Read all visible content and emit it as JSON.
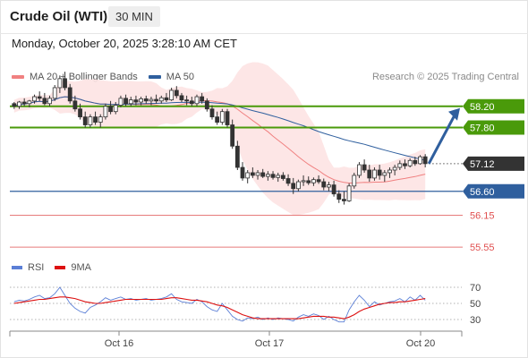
{
  "header": {
    "title": "Crude Oil (WTI)",
    "timeframe": "30 MIN"
  },
  "timestamp": "Monday, October 20, 2025 3:28:10 AM CET",
  "legend": {
    "bollinger": {
      "label": "MA 20 + Bollinger Bands",
      "color": "#f08080"
    },
    "ma50": {
      "label": "MA 50",
      "color": "#2f5f9e"
    }
  },
  "research_label": "Research © 2025 Trading Central",
  "rsi_legend": {
    "rsi": {
      "label": "RSI",
      "color": "#5b7fd6"
    },
    "ma9": {
      "label": "9MA",
      "color": "#dd1111"
    }
  },
  "chart_data": [
    {
      "type": "candlestick",
      "ylim": [
        55.4,
        58.6
      ],
      "xticks": [
        "Oct 16",
        "Oct 17",
        "Oct 20"
      ],
      "levels": [
        {
          "label": "58.20",
          "value": 58.2,
          "kind": "resistance",
          "color": "#4a9a0a"
        },
        {
          "label": "57.80",
          "value": 57.8,
          "kind": "resistance",
          "color": "#4a9a0a"
        },
        {
          "label": "57.12",
          "value": 57.12,
          "kind": "last",
          "color": "#333333"
        },
        {
          "label": "56.60",
          "value": 56.6,
          "kind": "pivot",
          "color": "#2f5f9e"
        },
        {
          "label": "56.15",
          "value": 56.15,
          "kind": "support",
          "color": "#e05050"
        },
        {
          "label": "55.55",
          "value": 55.55,
          "kind": "support",
          "color": "#e05050"
        }
      ],
      "candles": [
        [
          58.25,
          58.28,
          58.15,
          58.2
        ],
        [
          58.2,
          58.3,
          58.15,
          58.28
        ],
        [
          58.28,
          58.35,
          58.2,
          58.25
        ],
        [
          58.25,
          58.32,
          58.18,
          58.3
        ],
        [
          58.3,
          58.42,
          58.25,
          58.38
        ],
        [
          58.38,
          58.48,
          58.3,
          58.35
        ],
        [
          58.35,
          58.45,
          58.22,
          58.25
        ],
        [
          58.25,
          58.4,
          58.2,
          58.35
        ],
        [
          58.35,
          58.6,
          58.3,
          58.55
        ],
        [
          58.55,
          58.78,
          58.45,
          58.72
        ],
        [
          58.72,
          58.85,
          58.5,
          58.55
        ],
        [
          58.55,
          58.62,
          58.25,
          58.3
        ],
        [
          58.3,
          58.4,
          58.1,
          58.15
        ],
        [
          58.15,
          58.25,
          57.95,
          58.0
        ],
        [
          58.0,
          58.1,
          57.8,
          57.85
        ],
        [
          57.85,
          58.05,
          57.8,
          58.0
        ],
        [
          58.0,
          58.1,
          57.85,
          57.9
        ],
        [
          57.9,
          58.05,
          57.8,
          58.0
        ],
        [
          58.0,
          58.25,
          57.95,
          58.2
        ],
        [
          58.2,
          58.3,
          58.05,
          58.1
        ],
        [
          58.1,
          58.28,
          58.05,
          58.22
        ],
        [
          58.22,
          58.4,
          58.18,
          58.35
        ],
        [
          58.35,
          58.42,
          58.2,
          58.25
        ],
        [
          58.25,
          58.38,
          58.2,
          58.32
        ],
        [
          58.32,
          58.4,
          58.22,
          58.28
        ],
        [
          58.28,
          58.38,
          58.22,
          58.34
        ],
        [
          58.34,
          58.4,
          58.25,
          58.3
        ],
        [
          58.3,
          58.38,
          58.22,
          58.33
        ],
        [
          58.33,
          58.42,
          58.25,
          58.3
        ],
        [
          58.3,
          58.4,
          58.25,
          58.36
        ],
        [
          58.36,
          58.45,
          58.28,
          58.32
        ],
        [
          58.32,
          58.55,
          58.3,
          58.5
        ],
        [
          58.5,
          58.58,
          58.35,
          58.4
        ],
        [
          58.4,
          58.45,
          58.28,
          58.32
        ],
        [
          58.32,
          58.4,
          58.22,
          58.3
        ],
        [
          58.3,
          58.38,
          58.2,
          58.25
        ],
        [
          58.25,
          58.42,
          58.2,
          58.38
        ],
        [
          58.38,
          58.45,
          58.25,
          58.3
        ],
        [
          58.3,
          58.35,
          58.1,
          58.15
        ],
        [
          58.15,
          58.22,
          57.95,
          58.0
        ],
        [
          58.0,
          58.1,
          57.85,
          57.9
        ],
        [
          57.9,
          58.15,
          57.85,
          58.1
        ],
        [
          58.1,
          58.15,
          57.8,
          57.85
        ],
        [
          57.85,
          57.95,
          57.4,
          57.45
        ],
        [
          57.45,
          57.55,
          57.0,
          57.05
        ],
        [
          57.05,
          57.15,
          56.8,
          56.85
        ],
        [
          56.85,
          57.0,
          56.75,
          56.95
        ],
        [
          56.95,
          57.05,
          56.85,
          56.9
        ],
        [
          56.9,
          57.0,
          56.82,
          56.95
        ],
        [
          56.95,
          57.02,
          56.85,
          56.88
        ],
        [
          56.88,
          56.98,
          56.8,
          56.92
        ],
        [
          56.92,
          56.98,
          56.82,
          56.86
        ],
        [
          56.86,
          56.95,
          56.78,
          56.9
        ],
        [
          56.9,
          56.96,
          56.8,
          56.84
        ],
        [
          56.84,
          56.92,
          56.7,
          56.75
        ],
        [
          56.75,
          56.85,
          56.55,
          56.65
        ],
        [
          56.65,
          56.82,
          56.6,
          56.78
        ],
        [
          56.78,
          56.9,
          56.7,
          56.8
        ],
        [
          56.8,
          56.88,
          56.72,
          56.76
        ],
        [
          56.76,
          56.86,
          56.7,
          56.82
        ],
        [
          56.82,
          56.9,
          56.74,
          56.78
        ],
        [
          56.78,
          56.84,
          56.62,
          56.68
        ],
        [
          56.68,
          56.78,
          56.6,
          56.72
        ],
        [
          56.72,
          56.8,
          56.5,
          56.55
        ],
        [
          56.55,
          56.62,
          56.38,
          56.45
        ],
        [
          56.45,
          56.6,
          56.35,
          56.42
        ],
        [
          56.42,
          56.75,
          56.4,
          56.7
        ],
        [
          56.7,
          56.95,
          56.65,
          56.9
        ],
        [
          56.9,
          57.15,
          56.85,
          57.1
        ],
        [
          57.1,
          57.2,
          56.95,
          57.0
        ],
        [
          57.0,
          57.1,
          56.78,
          56.85
        ],
        [
          56.85,
          57.05,
          56.8,
          57.0
        ],
        [
          57.0,
          57.1,
          56.82,
          56.9
        ],
        [
          56.9,
          57.0,
          56.78,
          56.95
        ],
        [
          56.95,
          57.05,
          56.85,
          57.0
        ],
        [
          57.0,
          57.1,
          56.9,
          57.05
        ],
        [
          57.05,
          57.18,
          57.0,
          57.12
        ],
        [
          57.12,
          57.2,
          57.02,
          57.08
        ],
        [
          57.08,
          57.22,
          57.05,
          57.18
        ],
        [
          57.18,
          57.25,
          57.08,
          57.12
        ],
        [
          57.12,
          57.28,
          57.1,
          57.25
        ],
        [
          57.25,
          57.3,
          57.05,
          57.12
        ]
      ]
    },
    {
      "type": "line",
      "title": "RSI",
      "ylim": [
        20,
        80
      ],
      "yticks": [
        "70",
        "50",
        "30"
      ],
      "series": [
        {
          "name": "RSI",
          "values": [
            52,
            54,
            53,
            55,
            58,
            60,
            56,
            57,
            62,
            70,
            60,
            50,
            44,
            40,
            38,
            45,
            48,
            52,
            57,
            54,
            56,
            58,
            55,
            56,
            54,
            55,
            56,
            54,
            55,
            56,
            58,
            62,
            55,
            52,
            51,
            50,
            55,
            52,
            46,
            42,
            40,
            50,
            42,
            34,
            30,
            28,
            32,
            31,
            33,
            30,
            32,
            30,
            32,
            31,
            30,
            28,
            33,
            36,
            34,
            37,
            35,
            30,
            34,
            30,
            27,
            27,
            42,
            52,
            60,
            54,
            46,
            52,
            48,
            50,
            52,
            53,
            56,
            52,
            58,
            54,
            60,
            54
          ]
        },
        {
          "name": "9MA",
          "values": [
            50,
            51,
            52,
            53,
            54,
            55,
            55,
            56,
            57,
            58,
            58,
            57,
            56,
            54,
            52,
            51,
            50,
            50,
            51,
            52,
            53,
            54,
            55,
            55,
            55,
            55,
            55,
            55,
            55,
            55,
            56,
            57,
            57,
            56,
            55,
            54,
            54,
            53,
            52,
            50,
            48,
            47,
            45,
            42,
            39,
            36,
            34,
            32,
            31,
            31,
            31,
            31,
            31,
            31,
            31,
            31,
            31,
            32,
            33,
            34,
            34,
            34,
            33,
            33,
            32,
            31,
            33,
            36,
            40,
            43,
            45,
            47,
            49,
            50,
            51,
            51,
            52,
            52,
            53,
            54,
            55,
            56
          ]
        }
      ]
    }
  ]
}
